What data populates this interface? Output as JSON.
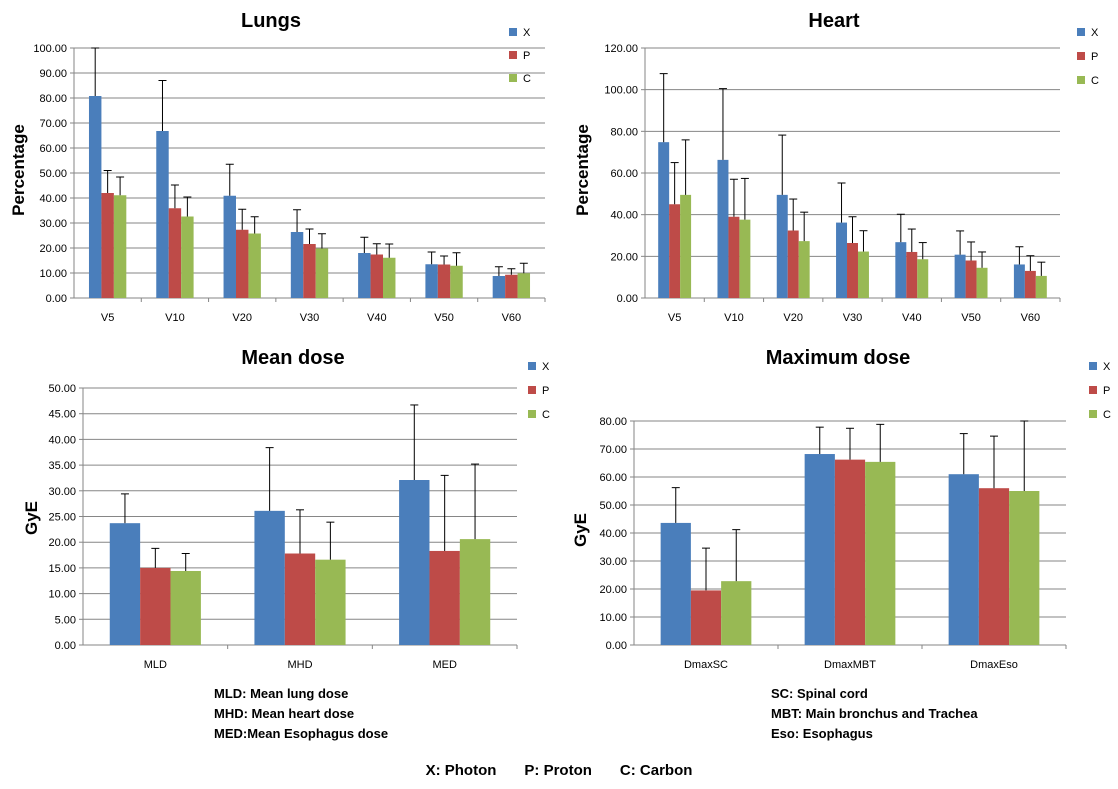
{
  "chart_data": [
    {
      "type": "bar",
      "title": "Lungs",
      "ylabel": "Percentage",
      "xlabel": "",
      "ylim": [
        0,
        100
      ],
      "ystep": 10,
      "categories": [
        "V5",
        "V10",
        "V20",
        "V30",
        "V40",
        "V50",
        "V60"
      ],
      "series": [
        {
          "name": "X",
          "values": [
            80.8,
            66.8,
            40.9,
            26.4,
            18.0,
            13.5,
            8.8
          ],
          "errors": [
            19.2,
            20.2,
            12.6,
            8.9,
            6.3,
            4.9,
            3.7
          ]
        },
        {
          "name": "P",
          "values": [
            42.0,
            35.9,
            27.3,
            21.6,
            17.4,
            13.4,
            9.3
          ],
          "errors": [
            9.0,
            9.3,
            8.2,
            6.0,
            4.3,
            3.4,
            2.4
          ]
        },
        {
          "name": "C",
          "values": [
            41.1,
            32.6,
            25.8,
            19.8,
            16.1,
            12.9,
            9.9
          ],
          "errors": [
            7.3,
            7.8,
            6.7,
            5.9,
            5.5,
            5.2,
            4.0
          ]
        }
      ],
      "grid": true,
      "legend": "top-right"
    },
    {
      "type": "bar",
      "title": "Heart",
      "ylabel": "Percentage",
      "xlabel": "",
      "ylim": [
        0,
        120
      ],
      "ystep": 20,
      "categories": [
        "V5",
        "V10",
        "V20",
        "V30",
        "V40",
        "V50",
        "V60"
      ],
      "series": [
        {
          "name": "X",
          "values": [
            74.8,
            66.3,
            49.5,
            36.2,
            26.8,
            20.8,
            16.1
          ],
          "errors": [
            32.9,
            34.2,
            28.7,
            19.0,
            13.4,
            11.4,
            8.5
          ]
        },
        {
          "name": "P",
          "values": [
            45.0,
            39.0,
            32.4,
            26.4,
            22.1,
            18.0,
            13.0
          ],
          "errors": [
            20.0,
            18.0,
            15.1,
            12.6,
            11.0,
            8.9,
            7.3
          ]
        },
        {
          "name": "C",
          "values": [
            49.5,
            37.6,
            27.3,
            22.3,
            18.6,
            14.5,
            10.6
          ],
          "errors": [
            26.4,
            19.8,
            13.9,
            10.0,
            8.0,
            7.6,
            6.6
          ]
        }
      ],
      "grid": true,
      "legend": "top-right"
    },
    {
      "type": "bar",
      "title": "Mean dose",
      "ylabel": "GyE",
      "xlabel": "",
      "ylim": [
        0,
        50
      ],
      "ystep": 5,
      "categories": [
        "MLD",
        "MHD",
        "MED"
      ],
      "series": [
        {
          "name": "X",
          "values": [
            23.7,
            26.1,
            32.1
          ],
          "errors": [
            5.7,
            12.3,
            14.6
          ]
        },
        {
          "name": "P",
          "values": [
            15.0,
            17.8,
            18.3
          ],
          "errors": [
            3.8,
            8.5,
            14.7
          ]
        },
        {
          "name": "C",
          "values": [
            14.4,
            16.6,
            20.6
          ],
          "errors": [
            3.4,
            7.3,
            14.6
          ]
        }
      ],
      "grid": true,
      "legend": "top-right"
    },
    {
      "type": "bar",
      "title": "Maximum dose",
      "ylabel": "GyE",
      "xlabel": "",
      "ylim": [
        0,
        80
      ],
      "ystep": 10,
      "categories": [
        "DmaxSC",
        "DmaxMBT",
        "DmaxEso"
      ],
      "series": [
        {
          "name": "X",
          "values": [
            43.6,
            68.2,
            61.0
          ],
          "errors": [
            12.6,
            9.6,
            14.5
          ]
        },
        {
          "name": "P",
          "values": [
            19.5,
            66.2,
            56.0
          ],
          "errors": [
            15.1,
            11.2,
            18.6
          ]
        },
        {
          "name": "C",
          "values": [
            22.8,
            65.4,
            55.0
          ],
          "errors": [
            18.4,
            13.4,
            25.0
          ]
        }
      ],
      "grid": true,
      "legend": "top-right"
    }
  ],
  "colors": {
    "X": "#4a7ebb",
    "P": "#be4b48",
    "C": "#98b954",
    "grid": "#868686",
    "axis": "#868686"
  },
  "notes": {
    "mean_dose": [
      "MLD: Mean lung dose",
      "MHD: Mean heart dose",
      "MED:Mean Esophagus dose"
    ],
    "max_dose": [
      "SC: Spinal cord",
      "MBT: Main bronchus and Trachea",
      "Eso: Esophagus"
    ]
  },
  "footer": {
    "x": "X: Photon",
    "p": "P: Proton",
    "c": "C: Carbon"
  }
}
